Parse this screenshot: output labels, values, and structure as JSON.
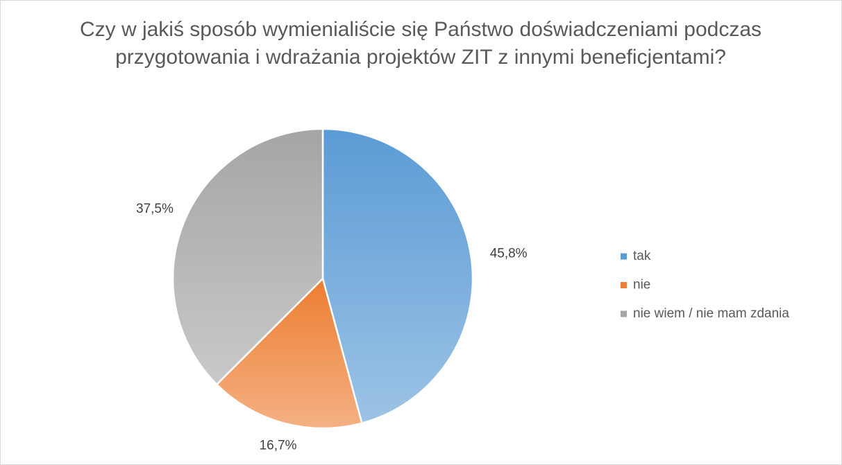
{
  "chart_data": {
    "type": "pie",
    "title": "Czy w jakiś sposób wymienialiście się Państwo doświadczeniami podczas przygotowania i wdrażania projektów ZIT z innymi beneficjentami?",
    "categories": [
      "tak",
      "nie",
      "nie wiem / nie mam zdania"
    ],
    "values": [
      45.8,
      16.7,
      37.5
    ],
    "value_labels": [
      "45,8%",
      "16,7%",
      "37,5%"
    ],
    "colors": [
      "#5b9bd5",
      "#ed7d31",
      "#a5a5a5"
    ],
    "legend": "right"
  }
}
